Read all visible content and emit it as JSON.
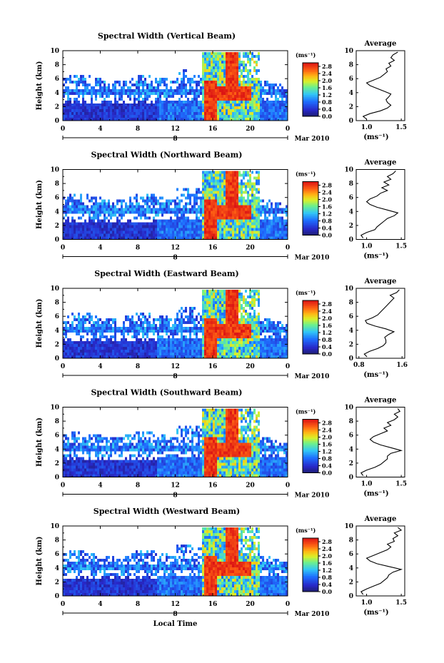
{
  "chart_data": [
    {
      "type": "heatmap",
      "title": "Spectral Width (Vertical Beam)",
      "ylabel": "Height (km)",
      "xlim": [
        0,
        24
      ],
      "ylim": [
        0,
        10
      ],
      "xticks": [
        "0",
        "4",
        "8",
        "12",
        "16",
        "20",
        "0"
      ],
      "yticks": [
        "0",
        "2",
        "4",
        "6",
        "8",
        "10"
      ],
      "date_label": "8",
      "month_label": "Mar 2010",
      "colorbar": {
        "label": "(ms⁻¹)",
        "ticks": [
          "2.8",
          "2.4",
          "2.0",
          "1.6",
          "1.2",
          "0.8",
          "0.4",
          "0.0"
        ],
        "range": [
          0,
          3.0
        ]
      },
      "profile": {
        "title": "Average",
        "xlabel": "(ms⁻¹)",
        "xlim": [
          0.85,
          1.55
        ],
        "xticks": [
          "1.0",
          "1.5"
        ],
        "yticks": [
          "0",
          "2",
          "4",
          "6",
          "8",
          "10"
        ],
        "heights": [
          0.2,
          0.6,
          1.0,
          1.4,
          1.8,
          2.2,
          2.6,
          3.0,
          3.4,
          3.8,
          4.2,
          4.6,
          5.0,
          5.4,
          5.8,
          6.2,
          6.6,
          7.0,
          7.4,
          7.8,
          8.2,
          8.6,
          9.0,
          9.4,
          9.8
        ],
        "values": [
          1.0,
          0.95,
          1.05,
          1.2,
          1.3,
          1.35,
          1.3,
          1.28,
          1.32,
          1.35,
          1.25,
          1.15,
          1.05,
          1.0,
          1.1,
          1.2,
          1.25,
          1.3,
          1.28,
          1.35,
          1.32,
          1.4,
          1.35,
          1.38,
          1.45
        ]
      }
    },
    {
      "type": "heatmap",
      "title": "Spectral Width (Northward Beam)",
      "ylabel": "Height (km)",
      "xlim": [
        0,
        24
      ],
      "ylim": [
        0,
        10
      ],
      "xticks": [
        "0",
        "4",
        "8",
        "12",
        "16",
        "20",
        "0"
      ],
      "yticks": [
        "0",
        "2",
        "4",
        "6",
        "8",
        "10"
      ],
      "date_label": "8",
      "month_label": "Mar 2010",
      "colorbar": {
        "label": "(ms⁻¹)",
        "ticks": [
          "2.8",
          "2.4",
          "2.0",
          "1.6",
          "1.2",
          "0.8",
          "0.4",
          "0.0"
        ],
        "range": [
          0,
          3.0
        ]
      },
      "profile": {
        "title": "Average",
        "xlabel": "(ms⁻¹)",
        "xlim": [
          0.85,
          1.55
        ],
        "xticks": [
          "1.0",
          "1.5"
        ],
        "yticks": [
          "0",
          "2",
          "4",
          "6",
          "8",
          "10"
        ],
        "heights": [
          0.2,
          0.6,
          1.0,
          1.4,
          1.8,
          2.2,
          2.6,
          3.0,
          3.4,
          3.8,
          4.2,
          4.6,
          5.0,
          5.4,
          5.8,
          6.2,
          6.6,
          7.0,
          7.4,
          7.8,
          8.2,
          8.6,
          9.0,
          9.4,
          9.8
        ],
        "values": [
          0.95,
          0.92,
          1.0,
          1.12,
          1.15,
          1.2,
          1.25,
          1.3,
          1.4,
          1.45,
          1.3,
          1.15,
          1.05,
          1.0,
          1.05,
          1.15,
          1.2,
          1.3,
          1.22,
          1.32,
          1.25,
          1.35,
          1.3,
          1.38,
          1.42
        ]
      }
    },
    {
      "type": "heatmap",
      "title": "Spectral Width (Eastward Beam)",
      "ylabel": "Height (km)",
      "xlim": [
        0,
        24
      ],
      "ylim": [
        0,
        10
      ],
      "xticks": [
        "0",
        "4",
        "8",
        "12",
        "16",
        "20",
        "0"
      ],
      "yticks": [
        "0",
        "2",
        "4",
        "6",
        "8",
        "10"
      ],
      "date_label": "8",
      "month_label": "Mar 2010",
      "colorbar": {
        "label": "(ms⁻¹)",
        "ticks": [
          "2.8",
          "2.4",
          "2.0",
          "1.6",
          "1.2",
          "0.8",
          "0.4",
          "0.0"
        ],
        "range": [
          0,
          3.0
        ]
      },
      "profile": {
        "title": "Average",
        "xlabel": "(ms⁻¹)",
        "xlim": [
          0.75,
          1.65
        ],
        "xticks": [
          "0.8",
          "1.6"
        ],
        "yticks": [
          "0",
          "2",
          "4",
          "6",
          "8",
          "10"
        ],
        "heights": [
          0.2,
          0.6,
          1.0,
          1.4,
          1.8,
          2.2,
          2.6,
          3.0,
          3.4,
          3.8,
          4.2,
          4.6,
          5.0,
          5.4,
          5.8,
          6.2,
          6.6,
          7.0,
          7.4,
          7.8,
          8.2,
          8.6,
          9.0,
          9.4,
          9.8
        ],
        "values": [
          0.95,
          0.9,
          1.0,
          1.15,
          1.25,
          1.3,
          1.3,
          1.28,
          1.35,
          1.45,
          1.3,
          1.1,
          0.95,
          0.92,
          1.05,
          1.15,
          1.2,
          1.25,
          1.3,
          1.35,
          1.4,
          1.45,
          1.38,
          1.5,
          1.55
        ]
      }
    },
    {
      "type": "heatmap",
      "title": "Spectral Width (Southward Beam)",
      "ylabel": "Height (km)",
      "xlim": [
        0,
        24
      ],
      "ylim": [
        0,
        10
      ],
      "xticks": [
        "0",
        "4",
        "8",
        "12",
        "16",
        "20",
        "0"
      ],
      "yticks": [
        "0",
        "2",
        "4",
        "6",
        "8",
        "10"
      ],
      "date_label": "8",
      "month_label": "Mar 2010",
      "colorbar": {
        "label": "(ms⁻¹)",
        "ticks": [
          "2.8",
          "2.4",
          "2.0",
          "1.6",
          "1.2",
          "0.8",
          "0.4",
          "0.0"
        ],
        "range": [
          0,
          3.0
        ]
      },
      "profile": {
        "title": "Average",
        "xlabel": "(ms⁻¹)",
        "xlim": [
          0.85,
          1.55
        ],
        "xticks": [
          "1.0",
          "1.5"
        ],
        "yticks": [
          "0",
          "2",
          "4",
          "6",
          "8",
          "10"
        ],
        "heights": [
          0.2,
          0.6,
          1.0,
          1.4,
          1.8,
          2.2,
          2.6,
          3.0,
          3.4,
          3.8,
          4.2,
          4.6,
          5.0,
          5.4,
          5.8,
          6.2,
          6.6,
          7.0,
          7.4,
          7.8,
          8.2,
          8.6,
          9.0,
          9.4,
          9.8
        ],
        "values": [
          0.95,
          0.92,
          1.0,
          1.12,
          1.2,
          1.25,
          1.3,
          1.3,
          1.35,
          1.5,
          1.35,
          1.2,
          1.1,
          1.05,
          1.1,
          1.2,
          1.3,
          1.25,
          1.35,
          1.3,
          1.4,
          1.45,
          1.4,
          1.48,
          1.45
        ]
      }
    },
    {
      "type": "heatmap",
      "title": "Spectral Width (Westward Beam)",
      "ylabel": "Height (km)",
      "xlabel": "Local Time",
      "xlim": [
        0,
        24
      ],
      "ylim": [
        0,
        10
      ],
      "xticks": [
        "0",
        "4",
        "8",
        "12",
        "16",
        "20",
        "0"
      ],
      "yticks": [
        "0",
        "2",
        "4",
        "6",
        "8",
        "10"
      ],
      "date_label": "8",
      "month_label": "Mar 2010",
      "colorbar": {
        "label": "(ms⁻¹)",
        "ticks": [
          "2.8",
          "2.4",
          "2.0",
          "1.6",
          "1.2",
          "0.8",
          "0.4",
          "0.0"
        ],
        "range": [
          0,
          3.0
        ]
      },
      "profile": {
        "title": "Average",
        "xlabel": "(ms⁻¹)",
        "xlim": [
          0.85,
          1.55
        ],
        "xticks": [
          "1.0",
          "1.5"
        ],
        "yticks": [
          "0",
          "2",
          "4",
          "6",
          "8",
          "10"
        ],
        "heights": [
          0.2,
          0.6,
          1.0,
          1.4,
          1.8,
          2.2,
          2.6,
          3.0,
          3.4,
          3.8,
          4.2,
          4.6,
          5.0,
          5.4,
          5.8,
          6.2,
          6.6,
          7.0,
          7.4,
          7.8,
          8.2,
          8.6,
          9.0,
          9.4,
          9.8
        ],
        "values": [
          0.95,
          0.92,
          1.0,
          1.1,
          1.2,
          1.25,
          1.3,
          1.32,
          1.38,
          1.5,
          1.32,
          1.15,
          1.05,
          1.0,
          1.1,
          1.2,
          1.3,
          1.35,
          1.3,
          1.4,
          1.38,
          1.45,
          1.4,
          1.5,
          1.45
        ]
      }
    }
  ]
}
